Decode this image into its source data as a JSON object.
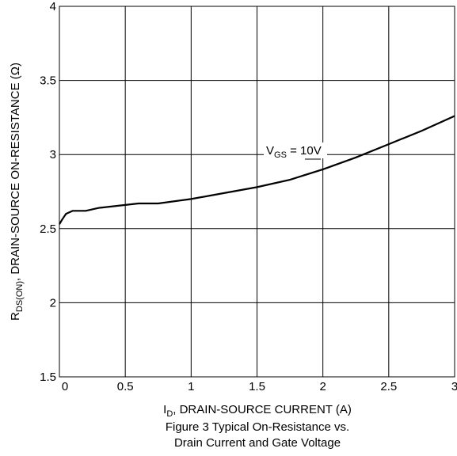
{
  "chart_data": {
    "type": "line",
    "y_label": {
      "main": "R",
      "sub": "DS(ON)",
      "rest": ", DRAIN-SOURCE ON-RESISTANCE (Ω)"
    },
    "x_label": {
      "main": "I",
      "sub": "D",
      "rest": ", DRAIN-SOURCE CURRENT (A)"
    },
    "caption": [
      "Figure 3 Typical On-Resistance vs.",
      "Drain Current and Gate Voltage"
    ],
    "annotation": {
      "main": "V",
      "sub": "GS",
      "rest": " = 10V"
    },
    "x": [
      0,
      0.02,
      0.05,
      0.1,
      0.2,
      0.3,
      0.5,
      0.6,
      0.75,
      1,
      1.25,
      1.5,
      1.75,
      2,
      2.25,
      2.5,
      2.75,
      3
    ],
    "series": [
      {
        "color": "#000000",
        "values": [
          2.53,
          2.56,
          2.6,
          2.62,
          2.62,
          2.64,
          2.66,
          2.67,
          2.67,
          2.7,
          2.74,
          2.78,
          2.83,
          2.9,
          2.98,
          3.07,
          3.16,
          3.26
        ]
      }
    ],
    "xlim": [
      0,
      3
    ],
    "xticks": [
      0,
      0.5,
      1,
      1.5,
      2,
      2.5,
      3
    ],
    "ylim": [
      1.5,
      4
    ],
    "yticks": [
      1.5,
      2,
      2.5,
      3,
      3.5,
      4
    ],
    "grid": true
  }
}
